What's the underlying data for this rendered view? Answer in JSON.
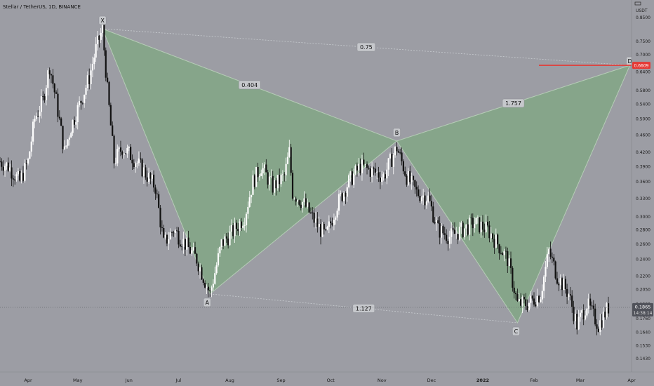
{
  "header": {
    "symbol_title": "Stellar / TetherUS, 1D, BINANCE"
  },
  "price_axis": {
    "currency_label": "USDT",
    "ticks": [
      "0.8500",
      "0.7500",
      "0.7000",
      "0.6400",
      "0.5800",
      "0.5400",
      "0.5000",
      "0.4600",
      "0.4200",
      "0.3900",
      "0.3600",
      "0.3300",
      "0.3000",
      "0.2800",
      "0.2600",
      "0.2400",
      "0.2200",
      "0.2050",
      "0.1900",
      "0.1760",
      "0.1640",
      "0.1530",
      "0.1430"
    ],
    "target_price": "0.6609",
    "last_price": "0.1865",
    "countdown": "14:38:14"
  },
  "time_axis": {
    "ticks": [
      "Apr",
      "May",
      "Jun",
      "Jul",
      "Aug",
      "Sep",
      "Oct",
      "Nov",
      "Dec",
      "2022",
      "Feb",
      "Mar",
      "Apr"
    ]
  },
  "chart_data": {
    "type": "candlestick",
    "title": "Stellar / TetherUS, 1D, BINANCE",
    "xlabel": "",
    "ylabel": "",
    "y_scale": "log",
    "ylim": [
      0.138,
      0.93
    ],
    "x_range": [
      "2021-03-15",
      "2022-04-01"
    ],
    "grid": false,
    "last_price": 0.1865,
    "target_level": 0.6609,
    "harmonic_pattern": {
      "points": [
        {
          "label": "X",
          "date": "2021-05-16",
          "price": 0.8
        },
        {
          "label": "A",
          "date": "2021-07-20",
          "price": 0.2
        },
        {
          "label": "B",
          "date": "2021-11-10",
          "price": 0.445
        },
        {
          "label": "C",
          "date": "2022-01-22",
          "price": 0.172
        },
        {
          "label": "D",
          "date": "2022-03-31",
          "price": 0.6609
        }
      ],
      "ratios": [
        {
          "value": "0.404",
          "between": "X-B"
        },
        {
          "value": "0.75",
          "between": "X-D"
        },
        {
          "value": "1.757",
          "between": "B-D"
        },
        {
          "value": "1.127",
          "between": "A-C"
        }
      ]
    },
    "price_path": [
      [
        "2021-03-15",
        0.4
      ],
      [
        "2021-03-20",
        0.39
      ],
      [
        "2021-03-27",
        0.36
      ],
      [
        "2021-04-01",
        0.4
      ],
      [
        "2021-04-05",
        0.5
      ],
      [
        "2021-04-10",
        0.55
      ],
      [
        "2021-04-14",
        0.66
      ],
      [
        "2021-04-18",
        0.55
      ],
      [
        "2021-04-23",
        0.42
      ],
      [
        "2021-04-27",
        0.48
      ],
      [
        "2021-05-03",
        0.55
      ],
      [
        "2021-05-08",
        0.62
      ],
      [
        "2021-05-12",
        0.72
      ],
      [
        "2021-05-16",
        0.8
      ],
      [
        "2021-05-19",
        0.58
      ],
      [
        "2021-05-23",
        0.4
      ],
      [
        "2021-05-28",
        0.43
      ],
      [
        "2021-06-03",
        0.41
      ],
      [
        "2021-06-10",
        0.38
      ],
      [
        "2021-06-17",
        0.35
      ],
      [
        "2021-06-22",
        0.26
      ],
      [
        "2021-06-28",
        0.28
      ],
      [
        "2021-07-05",
        0.26
      ],
      [
        "2021-07-12",
        0.24
      ],
      [
        "2021-07-20",
        0.2
      ],
      [
        "2021-07-27",
        0.26
      ],
      [
        "2021-08-04",
        0.28
      ],
      [
        "2021-08-10",
        0.3
      ],
      [
        "2021-08-15",
        0.36
      ],
      [
        "2021-08-20",
        0.39
      ],
      [
        "2021-08-27",
        0.35
      ],
      [
        "2021-09-03",
        0.37
      ],
      [
        "2021-09-06",
        0.42
      ],
      [
        "2021-09-08",
        0.34
      ],
      [
        "2021-09-15",
        0.32
      ],
      [
        "2021-09-22",
        0.29
      ],
      [
        "2021-09-28",
        0.27
      ],
      [
        "2021-10-05",
        0.32
      ],
      [
        "2021-10-12",
        0.36
      ],
      [
        "2021-10-19",
        0.39
      ],
      [
        "2021-10-26",
        0.38
      ],
      [
        "2021-11-02",
        0.37
      ],
      [
        "2021-11-10",
        0.43
      ],
      [
        "2021-11-16",
        0.37
      ],
      [
        "2021-11-22",
        0.34
      ],
      [
        "2021-11-29",
        0.33
      ],
      [
        "2021-12-05",
        0.28
      ],
      [
        "2021-12-12",
        0.27
      ],
      [
        "2021-12-20",
        0.28
      ],
      [
        "2021-12-27",
        0.29
      ],
      [
        "2022-01-04",
        0.28
      ],
      [
        "2022-01-10",
        0.26
      ],
      [
        "2022-01-16",
        0.24
      ],
      [
        "2022-01-22",
        0.19
      ],
      [
        "2022-01-28",
        0.19
      ],
      [
        "2022-02-05",
        0.2
      ],
      [
        "2022-02-10",
        0.25
      ],
      [
        "2022-02-15",
        0.22
      ],
      [
        "2022-02-22",
        0.2
      ],
      [
        "2022-02-27",
        0.17
      ],
      [
        "2022-03-05",
        0.19
      ],
      [
        "2022-03-12",
        0.17
      ],
      [
        "2022-03-18",
        0.1865
      ]
    ]
  }
}
